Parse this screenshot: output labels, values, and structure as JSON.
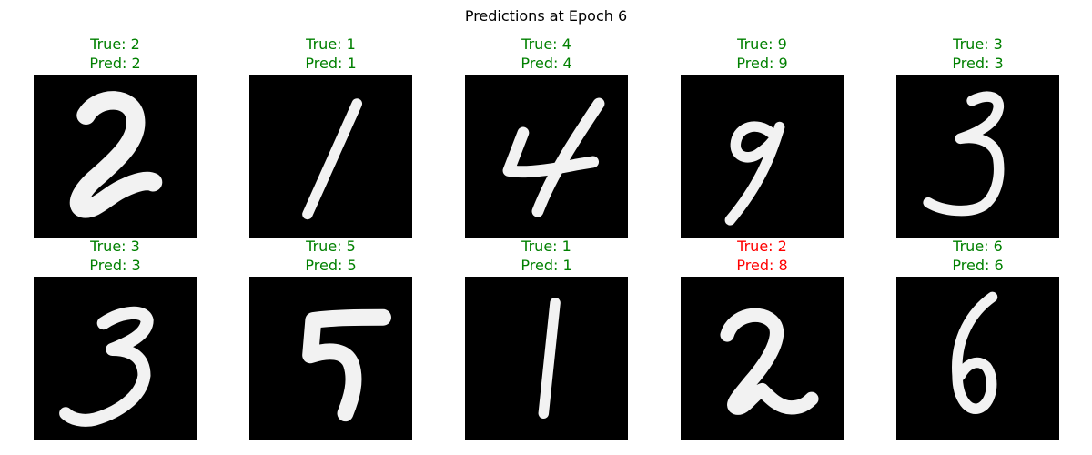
{
  "title": "Predictions at Epoch 6",
  "colors": {
    "correct": "#008000",
    "incorrect": "#ff0000"
  },
  "samples": [
    {
      "true_label": "True: 2",
      "pred_label": "Pred: 2",
      "correct": true
    },
    {
      "true_label": "True: 1",
      "pred_label": "Pred: 1",
      "correct": true
    },
    {
      "true_label": "True: 4",
      "pred_label": "Pred: 4",
      "correct": true
    },
    {
      "true_label": "True: 9",
      "pred_label": "Pred: 9",
      "correct": true
    },
    {
      "true_label": "True: 3",
      "pred_label": "Pred: 3",
      "correct": true
    },
    {
      "true_label": "True: 3",
      "pred_label": "Pred: 3",
      "correct": true
    },
    {
      "true_label": "True: 5",
      "pred_label": "Pred: 5",
      "correct": true
    },
    {
      "true_label": "True: 1",
      "pred_label": "Pred: 1",
      "correct": true
    },
    {
      "true_label": "True: 2",
      "pred_label": "Pred: 8",
      "correct": false
    },
    {
      "true_label": "True: 6",
      "pred_label": "Pred: 6",
      "correct": true
    }
  ]
}
